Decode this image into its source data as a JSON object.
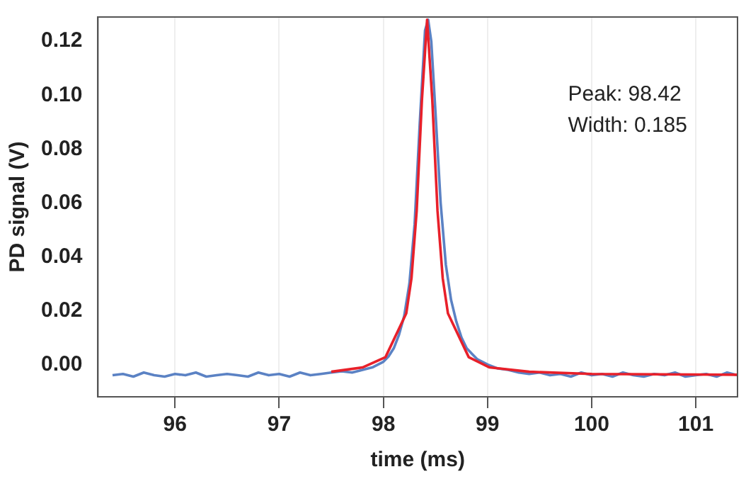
{
  "chart_data": {
    "type": "line",
    "xlabel": "time (ms)",
    "ylabel": "PD signal (V)",
    "xlim": [
      95.26,
      101.4
    ],
    "xticks": [
      96,
      97,
      98,
      99,
      100,
      101
    ],
    "ylim": [
      -0.012,
      0.129
    ],
    "yticks": [
      {
        "value": 0,
        "label": "0.00"
      },
      {
        "value": 0.02,
        "label": "0.02"
      },
      {
        "value": 0.04,
        "label": "0.04"
      },
      {
        "value": 0.06,
        "label": "0.06"
      },
      {
        "value": 0.08,
        "label": "0.08"
      },
      {
        "value": 0.1,
        "label": "0.10"
      },
      {
        "value": 0.12,
        "label": "0.12"
      }
    ],
    "grid": "x",
    "legend": false,
    "marker": "none",
    "line_style": "solid",
    "annotations": [
      "Peak: 98.42",
      "Width: 0.185"
    ],
    "series": [
      {
        "color": "#5b82c4",
        "x": [
          95.4,
          95.5,
          95.6,
          95.7,
          95.8,
          95.9,
          96.0,
          96.1,
          96.2,
          96.3,
          96.4,
          96.5,
          96.6,
          96.7,
          96.8,
          96.9,
          97.0,
          97.1,
          97.2,
          97.3,
          97.4,
          97.5,
          97.6,
          97.7,
          97.8,
          97.9,
          98.0,
          98.05,
          98.1,
          98.15,
          98.2,
          98.25,
          98.3,
          98.35,
          98.4,
          98.43,
          98.46,
          98.5,
          98.55,
          98.6,
          98.65,
          98.7,
          98.75,
          98.8,
          98.85,
          98.9,
          99.0,
          99.1,
          99.2,
          99.3,
          99.4,
          99.5,
          99.6,
          99.7,
          99.8,
          99.9,
          100.0,
          100.1,
          100.2,
          100.3,
          100.4,
          100.5,
          100.6,
          100.7,
          100.8,
          100.9,
          101.0,
          101.1,
          101.2,
          101.3,
          101.4
        ],
        "values": [
          -0.004,
          -0.0035,
          -0.0045,
          -0.003,
          -0.004,
          -0.0045,
          -0.0035,
          -0.004,
          -0.003,
          -0.0045,
          -0.004,
          -0.0035,
          -0.004,
          -0.0045,
          -0.003,
          -0.004,
          -0.0035,
          -0.0045,
          -0.003,
          -0.004,
          -0.0035,
          -0.003,
          -0.0025,
          -0.003,
          -0.002,
          -0.001,
          0.001,
          0.003,
          0.006,
          0.011,
          0.018,
          0.03,
          0.052,
          0.09,
          0.124,
          0.128,
          0.12,
          0.094,
          0.06,
          0.037,
          0.024,
          0.016,
          0.01,
          0.006,
          0.004,
          0.002,
          0.0,
          -0.0015,
          -0.002,
          -0.003,
          -0.0035,
          -0.003,
          -0.004,
          -0.0035,
          -0.0045,
          -0.003,
          -0.004,
          -0.0035,
          -0.0045,
          -0.003,
          -0.004,
          -0.0045,
          -0.0035,
          -0.004,
          -0.003,
          -0.0045,
          -0.004,
          -0.0035,
          -0.0045,
          -0.003,
          -0.004
        ]
      },
      {
        "color": "#e8202a",
        "x": [
          97.5,
          97.8,
          98.02,
          98.22,
          98.27,
          98.32,
          98.37,
          98.42,
          98.47,
          98.52,
          98.57,
          98.62,
          98.82,
          99.02,
          99.4,
          100.0,
          101.4
        ],
        "values": [
          -0.0027,
          -0.0011,
          0.0027,
          0.019,
          0.032,
          0.057,
          0.098,
          0.128,
          0.098,
          0.057,
          0.032,
          0.019,
          0.0027,
          -0.0011,
          -0.0027,
          -0.0035,
          -0.0038
        ]
      }
    ]
  }
}
